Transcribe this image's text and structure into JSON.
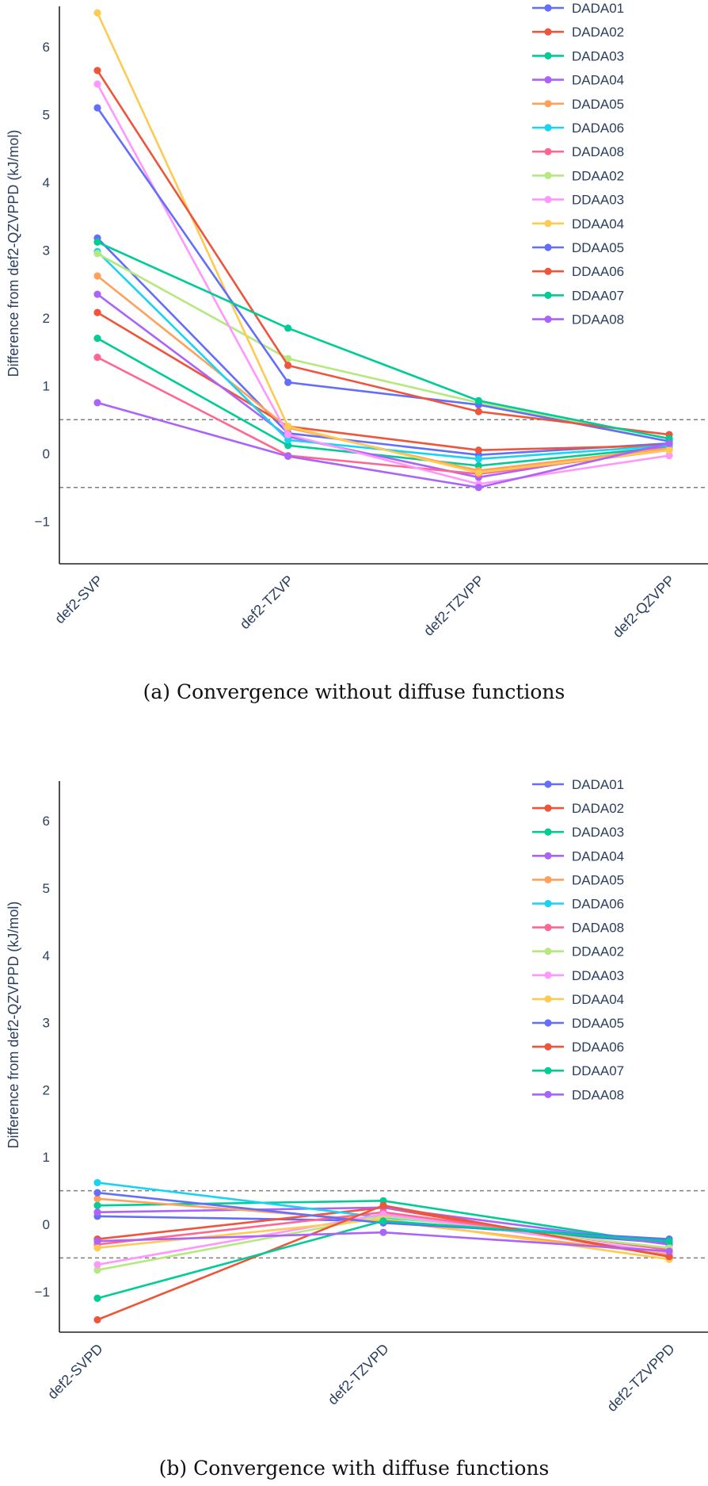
{
  "captions": {
    "a": "(a)  Convergence without diffuse functions",
    "b": "(b)  Convergence with diffuse functions"
  },
  "colors": [
    "#636efa",
    "#ef553b",
    "#00cc96",
    "#ab63fa",
    "#ffa15a",
    "#19d3f3",
    "#ff6692",
    "#b6e880",
    "#ff97ff",
    "#fecb52",
    "#636efa",
    "#ef553b",
    "#00cc96",
    "#ab63fa"
  ],
  "chart_data": [
    {
      "type": "line",
      "title": "",
      "xlabel": "",
      "ylabel": "Difference from def2-QZVPPD (kJ/mol)",
      "categories": [
        "def2-SVP",
        "def2-TZVP",
        "def2-TZVPP",
        "def2-QZVPP"
      ],
      "ylim": [
        -1.6,
        6.6
      ],
      "yticks": [
        -1,
        0,
        1,
        2,
        3,
        4,
        5,
        6
      ],
      "ytick_labels": [
        "−1",
        "0",
        "1",
        "2",
        "3",
        "4",
        "5",
        "6"
      ],
      "reference_lines": [
        0.5,
        -0.5
      ],
      "legend_position": "top-right",
      "grid": false,
      "series": [
        {
          "name": "DADA01",
          "values": [
            3.18,
            0.3,
            -0.02,
            0.15
          ]
        },
        {
          "name": "DADA02",
          "values": [
            2.08,
            0.4,
            0.05,
            0.12
          ]
        },
        {
          "name": "DADA03",
          "values": [
            1.7,
            0.12,
            -0.18,
            0.1
          ]
        },
        {
          "name": "DADA04",
          "values": [
            2.35,
            0.25,
            -0.35,
            0.12
          ]
        },
        {
          "name": "DADA05",
          "values": [
            2.62,
            0.38,
            -0.25,
            0.08
          ]
        },
        {
          "name": "DADA06",
          "values": [
            2.98,
            0.2,
            -0.08,
            0.12
          ]
        },
        {
          "name": "DADA08",
          "values": [
            1.42,
            -0.03,
            -0.3,
            0.05
          ]
        },
        {
          "name": "DDAA02",
          "values": [
            2.95,
            1.4,
            0.75,
            0.18
          ]
        },
        {
          "name": "DDAA03",
          "values": [
            5.45,
            0.28,
            -0.45,
            -0.03
          ]
        },
        {
          "name": "DDAA04",
          "values": [
            6.5,
            0.4,
            -0.28,
            0.05
          ]
        },
        {
          "name": "DDAA05",
          "values": [
            5.1,
            1.05,
            0.72,
            0.18
          ]
        },
        {
          "name": "DDAA06",
          "values": [
            5.65,
            1.3,
            0.62,
            0.28
          ]
        },
        {
          "name": "DDAA07",
          "values": [
            3.12,
            1.85,
            0.78,
            0.22
          ]
        },
        {
          "name": "DDAA08",
          "values": [
            0.75,
            -0.04,
            -0.5,
            0.15
          ]
        }
      ]
    },
    {
      "type": "line",
      "title": "",
      "xlabel": "",
      "ylabel": "Difference from def2-QZVPPD (kJ/mol)",
      "categories": [
        "def2-SVPD",
        "def2-TZVPD",
        "def2-TZVPPD"
      ],
      "ylim": [
        -1.6,
        6.6
      ],
      "yticks": [
        -1,
        0,
        1,
        2,
        3,
        4,
        5,
        6
      ],
      "ytick_labels": [
        "−1",
        "0",
        "1",
        "2",
        "3",
        "4",
        "5",
        "6"
      ],
      "reference_lines": [
        0.5,
        -0.5
      ],
      "legend_position": "top-right",
      "grid": false,
      "series": [
        {
          "name": "DADA01",
          "values": [
            0.12,
            0.05,
            -0.28
          ]
        },
        {
          "name": "DADA02",
          "values": [
            -0.22,
            0.25,
            -0.48
          ]
        },
        {
          "name": "DADA03",
          "values": [
            0.28,
            0.35,
            -0.3
          ]
        },
        {
          "name": "DADA04",
          "values": [
            0.18,
            0.25,
            -0.3
          ]
        },
        {
          "name": "DADA05",
          "values": [
            0.38,
            0.05,
            -0.45
          ]
        },
        {
          "name": "DADA06",
          "values": [
            0.62,
            0.1,
            -0.25
          ]
        },
        {
          "name": "DADA08",
          "values": [
            -0.3,
            0.18,
            -0.38
          ]
        },
        {
          "name": "DDAA02",
          "values": [
            -0.68,
            0.12,
            -0.35
          ]
        },
        {
          "name": "DDAA03",
          "values": [
            -0.6,
            0.15,
            -0.42
          ]
        },
        {
          "name": "DDAA04",
          "values": [
            -0.35,
            0.08,
            -0.52
          ]
        },
        {
          "name": "DDAA05",
          "values": [
            0.47,
            0.02,
            -0.22
          ]
        },
        {
          "name": "DDAA06",
          "values": [
            -1.42,
            0.28,
            -0.48
          ]
        },
        {
          "name": "DDAA07",
          "values": [
            -1.1,
            0.05,
            -0.25
          ]
        },
        {
          "name": "DDAA08",
          "values": [
            -0.25,
            -0.12,
            -0.4
          ]
        }
      ]
    }
  ]
}
